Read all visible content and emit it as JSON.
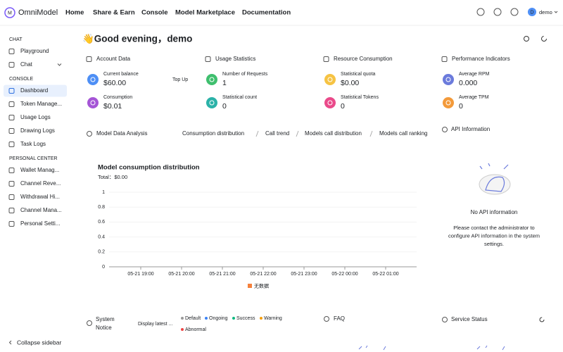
{
  "header": {
    "brand": "OmniModel",
    "nav": [
      "Home",
      "Share & Earn",
      "Console",
      "Model Marketplace",
      "Documentation"
    ],
    "avatar": "D",
    "user": "demo"
  },
  "sidebar": {
    "sections": [
      {
        "title": "CHAT",
        "items": [
          "Playground",
          "Chat"
        ]
      },
      {
        "title": "CONSOLE",
        "items": [
          "Dashboard",
          "Token Manage...",
          "Usage Logs",
          "Drawing Logs",
          "Task Logs"
        ]
      },
      {
        "title": "PERSONAL CENTER",
        "items": [
          "Wallet Manag...",
          "Channel Reve...",
          "Withdrawal Hi...",
          "Channel Mana...",
          "Personal Setti..."
        ]
      }
    ],
    "collapse": "Collapse sidebar"
  },
  "greeting": "👋Good evening，demo",
  "cards": [
    {
      "title": "Account Data",
      "items": [
        {
          "label": "Current balance",
          "value": "$60.00",
          "action": "Top Up"
        },
        {
          "label": "Consumption",
          "value": "$0.01"
        }
      ]
    },
    {
      "title": "Usage Statistics",
      "items": [
        {
          "label": "Number of Requests",
          "value": "1"
        },
        {
          "label": "Statistical count",
          "value": "0"
        }
      ]
    },
    {
      "title": "Resource Consumption",
      "items": [
        {
          "label": "Statistical quota",
          "value": "$0.00"
        },
        {
          "label": "Statistical Tokens",
          "value": "0"
        }
      ]
    },
    {
      "title": "Performance Indicators",
      "items": [
        {
          "label": "Average RPM",
          "value": "0.000"
        },
        {
          "label": "Average TPM",
          "value": "0"
        }
      ]
    }
  ],
  "analysis": {
    "title": "Model Data Analysis",
    "tabs": [
      "Consumption distribution",
      "Call trend",
      "Models call distribution",
      "Models call ranking"
    ],
    "chart": {
      "type": "line",
      "title": "Model consumption distribution",
      "total": "Total：$0.00",
      "categories": [
        "05-21 19:00",
        "05-21 20:00",
        "05-21 21:00",
        "05-21 22:00",
        "05-21 23:00",
        "05-22 00:00",
        "05-22 01:00"
      ],
      "ylim": [
        0,
        1
      ],
      "yticks": [
        0,
        0.2,
        0.4,
        0.6,
        0.8,
        1
      ],
      "grid": true,
      "legend": "无数据"
    }
  },
  "api": {
    "title": "API Information",
    "empty": "No API information",
    "message": [
      "Please contact the administrator to",
      "configure API information in the system",
      "settings."
    ]
  },
  "bottom": {
    "notice": {
      "title": [
        "System",
        "Notice"
      ],
      "filter": "Display latest ...",
      "legend": [
        "Default",
        "Ongoing",
        "Success",
        "Warning",
        "Abnormal"
      ]
    },
    "faq": "FAQ",
    "service": "Service Status"
  }
}
